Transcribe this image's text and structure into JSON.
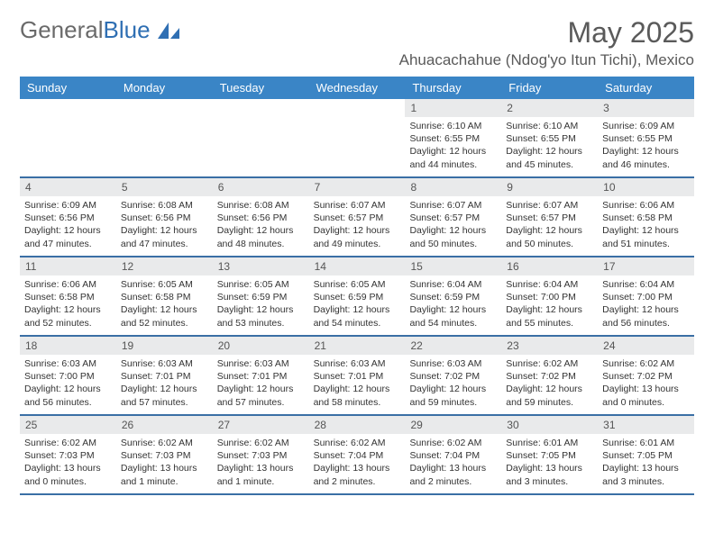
{
  "logo": {
    "text1": "General",
    "text2": "Blue"
  },
  "header": {
    "month_title": "May 2025",
    "location": "Ahuacachahue (Ndog'yo Itun Tichi), Mexico"
  },
  "colors": {
    "header_bar": "#3a85c6",
    "week_divider": "#3a6fa5",
    "daynum_bg": "#e9eaeb",
    "text_primary": "#333333",
    "text_muted": "#5a5a5a",
    "logo_gray": "#6a6a6a",
    "logo_blue": "#2f6fb3",
    "background": "#ffffff"
  },
  "typography": {
    "month_title_fontsize": 32,
    "location_fontsize": 17,
    "dow_fontsize": 13,
    "daynum_fontsize": 12,
    "body_fontsize": 10.5
  },
  "calendar": {
    "days_of_week": [
      "Sunday",
      "Monday",
      "Tuesday",
      "Wednesday",
      "Thursday",
      "Friday",
      "Saturday"
    ],
    "weeks": [
      [
        null,
        null,
        null,
        null,
        {
          "n": "1",
          "sr": "6:10 AM",
          "ss": "6:55 PM",
          "dl": "12 hours and 44 minutes."
        },
        {
          "n": "2",
          "sr": "6:10 AM",
          "ss": "6:55 PM",
          "dl": "12 hours and 45 minutes."
        },
        {
          "n": "3",
          "sr": "6:09 AM",
          "ss": "6:55 PM",
          "dl": "12 hours and 46 minutes."
        }
      ],
      [
        {
          "n": "4",
          "sr": "6:09 AM",
          "ss": "6:56 PM",
          "dl": "12 hours and 47 minutes."
        },
        {
          "n": "5",
          "sr": "6:08 AM",
          "ss": "6:56 PM",
          "dl": "12 hours and 47 minutes."
        },
        {
          "n": "6",
          "sr": "6:08 AM",
          "ss": "6:56 PM",
          "dl": "12 hours and 48 minutes."
        },
        {
          "n": "7",
          "sr": "6:07 AM",
          "ss": "6:57 PM",
          "dl": "12 hours and 49 minutes."
        },
        {
          "n": "8",
          "sr": "6:07 AM",
          "ss": "6:57 PM",
          "dl": "12 hours and 50 minutes."
        },
        {
          "n": "9",
          "sr": "6:07 AM",
          "ss": "6:57 PM",
          "dl": "12 hours and 50 minutes."
        },
        {
          "n": "10",
          "sr": "6:06 AM",
          "ss": "6:58 PM",
          "dl": "12 hours and 51 minutes."
        }
      ],
      [
        {
          "n": "11",
          "sr": "6:06 AM",
          "ss": "6:58 PM",
          "dl": "12 hours and 52 minutes."
        },
        {
          "n": "12",
          "sr": "6:05 AM",
          "ss": "6:58 PM",
          "dl": "12 hours and 52 minutes."
        },
        {
          "n": "13",
          "sr": "6:05 AM",
          "ss": "6:59 PM",
          "dl": "12 hours and 53 minutes."
        },
        {
          "n": "14",
          "sr": "6:05 AM",
          "ss": "6:59 PM",
          "dl": "12 hours and 54 minutes."
        },
        {
          "n": "15",
          "sr": "6:04 AM",
          "ss": "6:59 PM",
          "dl": "12 hours and 54 minutes."
        },
        {
          "n": "16",
          "sr": "6:04 AM",
          "ss": "7:00 PM",
          "dl": "12 hours and 55 minutes."
        },
        {
          "n": "17",
          "sr": "6:04 AM",
          "ss": "7:00 PM",
          "dl": "12 hours and 56 minutes."
        }
      ],
      [
        {
          "n": "18",
          "sr": "6:03 AM",
          "ss": "7:00 PM",
          "dl": "12 hours and 56 minutes."
        },
        {
          "n": "19",
          "sr": "6:03 AM",
          "ss": "7:01 PM",
          "dl": "12 hours and 57 minutes."
        },
        {
          "n": "20",
          "sr": "6:03 AM",
          "ss": "7:01 PM",
          "dl": "12 hours and 57 minutes."
        },
        {
          "n": "21",
          "sr": "6:03 AM",
          "ss": "7:01 PM",
          "dl": "12 hours and 58 minutes."
        },
        {
          "n": "22",
          "sr": "6:03 AM",
          "ss": "7:02 PM",
          "dl": "12 hours and 59 minutes."
        },
        {
          "n": "23",
          "sr": "6:02 AM",
          "ss": "7:02 PM",
          "dl": "12 hours and 59 minutes."
        },
        {
          "n": "24",
          "sr": "6:02 AM",
          "ss": "7:02 PM",
          "dl": "13 hours and 0 minutes."
        }
      ],
      [
        {
          "n": "25",
          "sr": "6:02 AM",
          "ss": "7:03 PM",
          "dl": "13 hours and 0 minutes."
        },
        {
          "n": "26",
          "sr": "6:02 AM",
          "ss": "7:03 PM",
          "dl": "13 hours and 1 minute."
        },
        {
          "n": "27",
          "sr": "6:02 AM",
          "ss": "7:03 PM",
          "dl": "13 hours and 1 minute."
        },
        {
          "n": "28",
          "sr": "6:02 AM",
          "ss": "7:04 PM",
          "dl": "13 hours and 2 minutes."
        },
        {
          "n": "29",
          "sr": "6:02 AM",
          "ss": "7:04 PM",
          "dl": "13 hours and 2 minutes."
        },
        {
          "n": "30",
          "sr": "6:01 AM",
          "ss": "7:05 PM",
          "dl": "13 hours and 3 minutes."
        },
        {
          "n": "31",
          "sr": "6:01 AM",
          "ss": "7:05 PM",
          "dl": "13 hours and 3 minutes."
        }
      ]
    ],
    "labels": {
      "sunrise_prefix": "Sunrise: ",
      "sunset_prefix": "Sunset: ",
      "daylight_prefix": "Daylight: "
    }
  }
}
